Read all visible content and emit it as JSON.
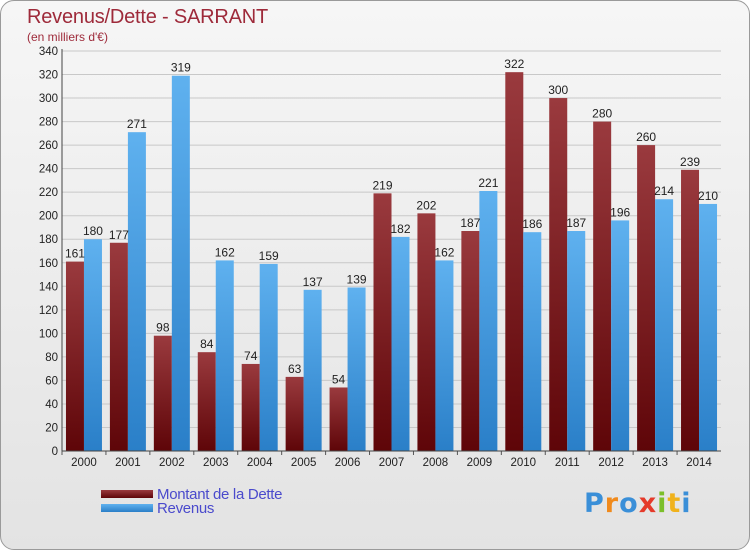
{
  "title": "Revenus/Dette - SARRANT",
  "subtitle": "(en milliers d'€)",
  "logo": {
    "letters": [
      "P",
      "r",
      "o",
      "x",
      "i",
      "t",
      "i"
    ],
    "colors": [
      "#3a8fd8",
      "#f08a1c",
      "#3a8fd8",
      "#e53a2a",
      "#7bbf2a",
      "#f0b21c",
      "#3a8fd8"
    ]
  },
  "colors": {
    "dette": "#7a1418",
    "revenus": "#3e97dd"
  },
  "chart_data": {
    "type": "bar",
    "title": "Revenus/Dette - SARRANT",
    "subtitle": "(en milliers d'€)",
    "categories": [
      "2000",
      "2001",
      "2002",
      "2003",
      "2004",
      "2005",
      "2006",
      "2007",
      "2008",
      "2009",
      "2010",
      "2011",
      "2012",
      "2013",
      "2014"
    ],
    "series": [
      {
        "name": "Montant de la Dette",
        "values": [
          161,
          177,
          98,
          84,
          74,
          63,
          54,
          219,
          202,
          187,
          322,
          300,
          280,
          260,
          239
        ]
      },
      {
        "name": "Revenus",
        "values": [
          180,
          271,
          319,
          162,
          159,
          137,
          139,
          182,
          162,
          221,
          186,
          187,
          196,
          214,
          210
        ]
      }
    ],
    "ylim": [
      0,
      340
    ],
    "yticks": [
      0,
      20,
      40,
      60,
      80,
      100,
      120,
      140,
      160,
      180,
      200,
      220,
      240,
      260,
      280,
      300,
      320,
      340
    ],
    "grid": true,
    "legend": "bottom-left"
  }
}
